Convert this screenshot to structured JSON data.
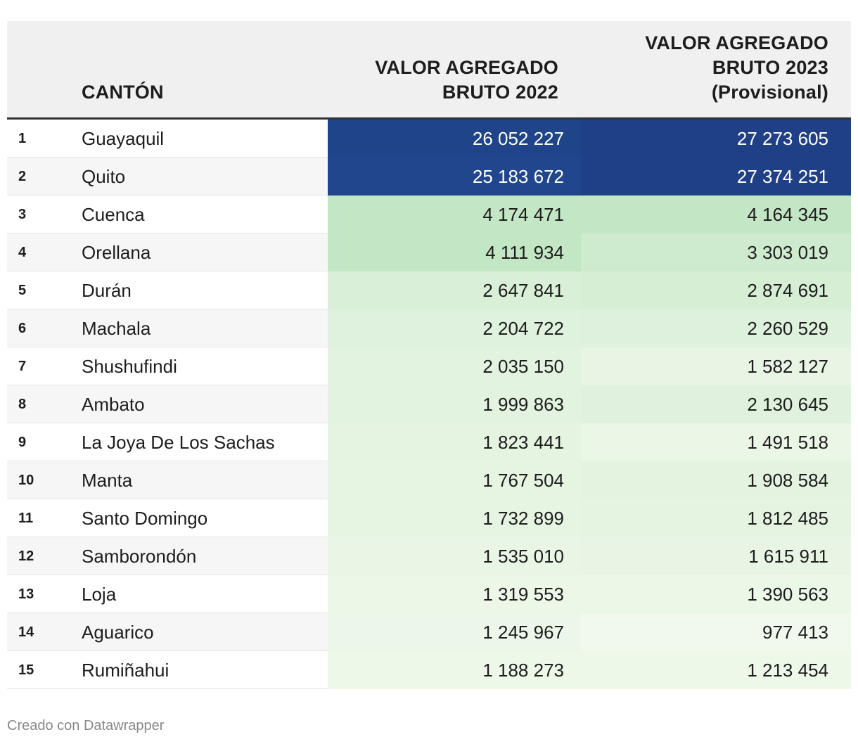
{
  "chart_data": {
    "type": "table",
    "columns": [
      "",
      "CANTÓN",
      "VALOR AGREGADO BRUTO 2022",
      "VALOR AGREGADO BRUTO 2023 (Provisional)"
    ],
    "header": {
      "canton": "CANTÓN",
      "col2022_line1": "VALOR AGREGADO",
      "col2022_line2": "BRUTO 2022",
      "col2023_line1": "VALOR AGREGADO",
      "col2023_line2": "BRUTO 2023",
      "col2023_line3": "(Provisional)"
    },
    "rows": [
      {
        "rank": "1",
        "canton": "Guayaquil",
        "v2022": "26 052 227",
        "v2023": "27 273 605",
        "n2022": 26052227,
        "n2023": 27273605
      },
      {
        "rank": "2",
        "canton": "Quito",
        "v2022": "25 183 672",
        "v2023": "27 374 251",
        "n2022": 25183672,
        "n2023": 27374251
      },
      {
        "rank": "3",
        "canton": "Cuenca",
        "v2022": "4 174 471",
        "v2023": "4 164 345",
        "n2022": 4174471,
        "n2023": 4164345
      },
      {
        "rank": "4",
        "canton": "Orellana",
        "v2022": "4 111 934",
        "v2023": "3 303 019",
        "n2022": 4111934,
        "n2023": 3303019
      },
      {
        "rank": "5",
        "canton": "Durán",
        "v2022": "2 647 841",
        "v2023": "2 874 691",
        "n2022": 2647841,
        "n2023": 2874691
      },
      {
        "rank": "6",
        "canton": "Machala",
        "v2022": "2 204 722",
        "v2023": "2 260 529",
        "n2022": 2204722,
        "n2023": 2260529
      },
      {
        "rank": "7",
        "canton": "Shushufindi",
        "v2022": "2 035 150",
        "v2023": "1 582 127",
        "n2022": 2035150,
        "n2023": 1582127
      },
      {
        "rank": "8",
        "canton": "Ambato",
        "v2022": "1 999 863",
        "v2023": "2 130 645",
        "n2022": 1999863,
        "n2023": 2130645
      },
      {
        "rank": "9",
        "canton": "La Joya De Los Sachas",
        "v2022": "1 823 441",
        "v2023": "1 491 518",
        "n2022": 1823441,
        "n2023": 1491518
      },
      {
        "rank": "10",
        "canton": "Manta",
        "v2022": "1 767 504",
        "v2023": "1 908 584",
        "n2022": 1767504,
        "n2023": 1908584
      },
      {
        "rank": "11",
        "canton": "Santo Domingo",
        "v2022": "1 732 899",
        "v2023": "1 812 485",
        "n2022": 1732899,
        "n2023": 1812485
      },
      {
        "rank": "12",
        "canton": "Samborondón",
        "v2022": "1 535 010",
        "v2023": "1 615 911",
        "n2022": 1535010,
        "n2023": 1615911
      },
      {
        "rank": "13",
        "canton": "Loja",
        "v2022": "1 319 553",
        "v2023": "1 390 563",
        "n2022": 1319553,
        "n2023": 1390563
      },
      {
        "rank": "14",
        "canton": "Aguarico",
        "v2022": "1 245 967",
        "v2023": "977 413",
        "n2022": 1245967,
        "n2023": 977413
      },
      {
        "rank": "15",
        "canton": "Rumiñahui",
        "v2022": "1 188 273",
        "v2023": "1 213 454",
        "n2022": 1188273,
        "n2023": 1213454
      }
    ],
    "heatmap_colors": {
      "dark_blue": "#1d4a8c",
      "mid_blue": "#2561a4",
      "mid_green": "#c7e8c8",
      "light_green": "#eef7e8"
    }
  },
  "footer": {
    "credit": "Creado con Datawrapper"
  }
}
